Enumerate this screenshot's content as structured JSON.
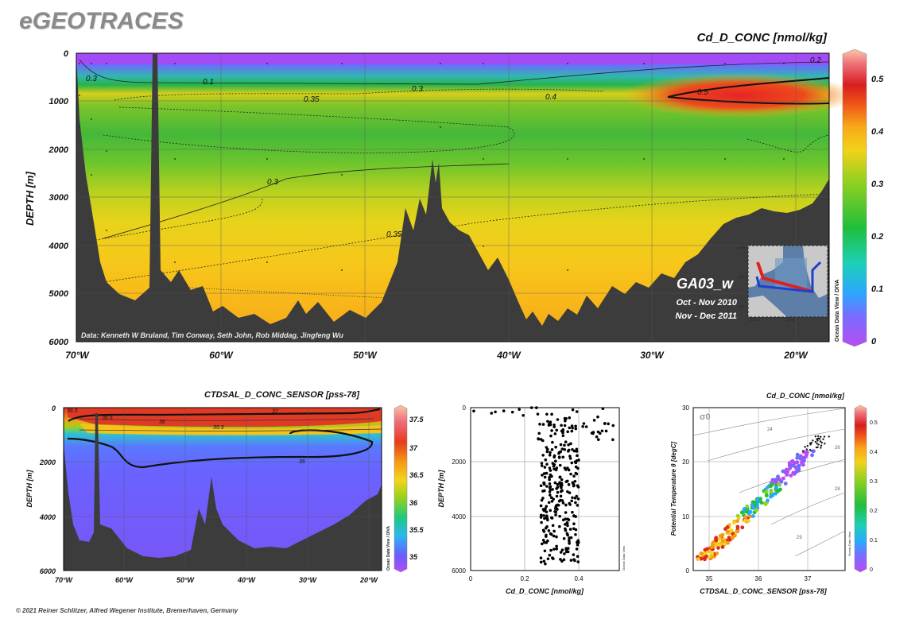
{
  "logo": "eGEOTRACES",
  "copyright": "© 2021 Reiner Schlitzer, Alfred Wegener Institute, Bremerhaven, Germany",
  "main_section": {
    "title": "Cd_D_CONC [nmol/kg]",
    "ylabel": "DEPTH [m]",
    "credit": "Data: Kenneth W Bruland, Tim Conway, Seth John, Rob Middag, Jingfeng Wu",
    "cruise": "GA03_w",
    "dates": [
      "Oct - Nov 2010",
      "Nov - Dec 2011"
    ],
    "watermark": "Ocean Data View / DIVA",
    "inset_ticks": {
      "x": [
        "80°W",
        "40°W"
      ],
      "y": [
        "60°N",
        "40°N",
        "20°N"
      ]
    },
    "colors": {
      "land": "#3c3c3c",
      "section_red": "#e02020",
      "section_blue": "#1e3fd0"
    }
  },
  "salinity_section": {
    "title": "CTDSAL_D_CONC_SENSOR [pss-78]",
    "ylabel": "DEPTH [m]",
    "watermark": "Ocean Data View / DIVA"
  },
  "profile_plot": {
    "xlabel": "Cd_D_CONC [nmol/kg]",
    "ylabel": "DEPTH [m]",
    "watermark": "Ocean Data View"
  },
  "ts_plot": {
    "title": "Cd_D_CONC [nmol/kg]",
    "xlabel": "CTDSAL_D_CONC_SENSOR [pss-78]",
    "ylabel": "Potential Temperature θ [degC]",
    "sigma_label": "σ0",
    "watermark": "Ocean Data View"
  },
  "chart_data": [
    {
      "type": "heatmap",
      "title": "Cd_D_CONC [nmol/kg]",
      "ylabel": "DEPTH [m]",
      "x_ticks": [
        "70°W",
        "60°W",
        "50°W",
        "40°W",
        "30°W",
        "20°W"
      ],
      "x_values": [
        -70,
        -60,
        -50,
        -40,
        -30,
        -20
      ],
      "xlim": [
        -70,
        -17.5
      ],
      "y_ticks": [
        0,
        1000,
        2000,
        3000,
        4000,
        5000,
        6000
      ],
      "ylim": [
        6000,
        0
      ],
      "colorbar": {
        "ticks": [
          0,
          0.1,
          0.2,
          0.3,
          0.4,
          0.5
        ],
        "range": [
          0,
          0.55
        ]
      },
      "contour_labels": [
        "0.1",
        "0.2",
        "0.3",
        "0.3",
        "0.3",
        "0.35",
        "0.35",
        "0.4",
        "0.5"
      ],
      "grid": true
    },
    {
      "type": "heatmap",
      "title": "CTDSAL_D_CONC_SENSOR [pss-78]",
      "ylabel": "DEPTH [m]",
      "x_ticks": [
        "70°W",
        "60°W",
        "50°W",
        "40°W",
        "30°W",
        "20°W"
      ],
      "y_ticks": [
        0,
        2000,
        4000,
        6000
      ],
      "ylim": [
        6000,
        0
      ],
      "colorbar": {
        "ticks": [
          35,
          35.5,
          36,
          36.5,
          37,
          37.5
        ],
        "range": [
          34.8,
          37.8
        ]
      },
      "contour_labels": [
        "36.5",
        "36.5",
        "37",
        "36",
        "35.5",
        "35"
      ],
      "grid": true
    },
    {
      "type": "scatter",
      "xlabel": "Cd_D_CONC [nmol/kg]",
      "ylabel": "DEPTH [m]",
      "x_ticks": [
        0,
        0.2,
        0.4
      ],
      "xlim": [
        0,
        0.55
      ],
      "y_ticks": [
        0,
        2000,
        4000,
        6000
      ],
      "ylim": [
        6000,
        0
      ],
      "grid": true
    },
    {
      "type": "scatter",
      "title": "Cd_D_CONC [nmol/kg]",
      "xlabel": "CTDSAL_D_CONC_SENSOR [pss-78]",
      "ylabel": "Potential Temperature θ [degC]",
      "x_ticks": [
        35,
        36,
        37
      ],
      "xlim": [
        34.7,
        37.8
      ],
      "y_ticks": [
        0,
        10,
        20,
        30
      ],
      "ylim": [
        0,
        30
      ],
      "sigma_labels": [
        "24",
        "26",
        "28",
        "29"
      ],
      "colorbar": {
        "ticks": [
          0,
          0.1,
          0.2,
          0.3,
          0.4,
          0.5
        ],
        "range": [
          0,
          0.55
        ]
      },
      "grid": true
    }
  ]
}
